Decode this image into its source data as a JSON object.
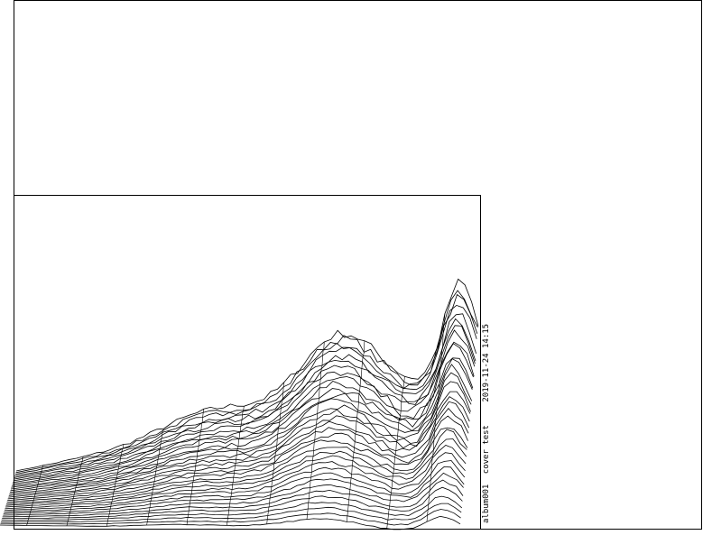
{
  "caption": {
    "album": "album001",
    "subject": "cover test",
    "timestamp": "2019-11-24 14:15"
  },
  "colors": {
    "background": "#ffffff",
    "ink": "#000000"
  }
}
